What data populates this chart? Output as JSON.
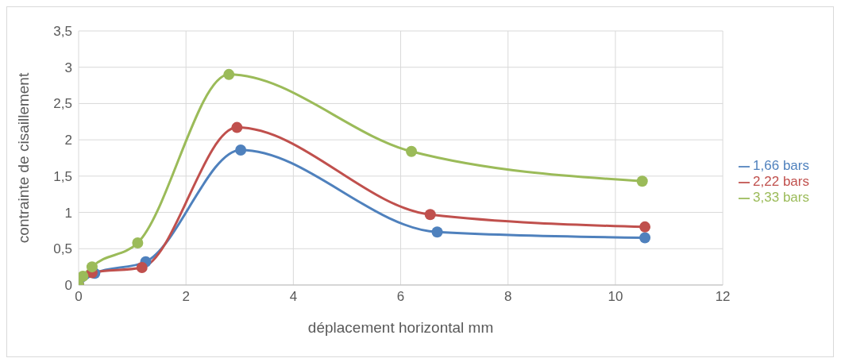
{
  "chart_data": {
    "type": "line",
    "xlabel": "déplacement horizontal mm",
    "ylabel": "contrainte de cisaillement",
    "xlim": [
      0,
      12
    ],
    "xticks": [
      0,
      2,
      4,
      6,
      8,
      10,
      12
    ],
    "ylim": [
      0,
      3.5
    ],
    "yticks": [
      {
        "value": 0,
        "label": "0"
      },
      {
        "value": 0.5,
        "label": "0,5"
      },
      {
        "value": 1,
        "label": "1"
      },
      {
        "value": 1.5,
        "label": "1,5"
      },
      {
        "value": 2,
        "label": "2"
      },
      {
        "value": 2.5,
        "label": "2,5"
      },
      {
        "value": 3,
        "label": "3"
      },
      {
        "value": 3.5,
        "label": "3,5"
      }
    ],
    "grid": true,
    "legend": "right",
    "marker": "circle",
    "line_style": "solid",
    "series": [
      {
        "name": "1,66 bars",
        "color": "#4f81bd",
        "x": [
          0,
          0.08,
          0.3,
          1.25,
          3.02,
          6.68,
          10.55
        ],
        "values": [
          0,
          null,
          0.16,
          0.32,
          1.86,
          0.73,
          0.65
        ]
      },
      {
        "name": "2,22 bars",
        "color": "#c0504d",
        "x": [
          0,
          0.05,
          0.25,
          1.18,
          2.95,
          6.55,
          10.55
        ],
        "values": [
          0,
          null,
          0.17,
          0.24,
          2.17,
          0.97,
          0.8
        ]
      },
      {
        "name": "3,33 bars",
        "color": "#9bbb59",
        "x": [
          0,
          0.08,
          0.25,
          1.1,
          2.8,
          6.2,
          10.5
        ],
        "values": [
          0,
          0.12,
          0.25,
          0.58,
          2.9,
          1.84,
          1.43
        ]
      }
    ]
  }
}
